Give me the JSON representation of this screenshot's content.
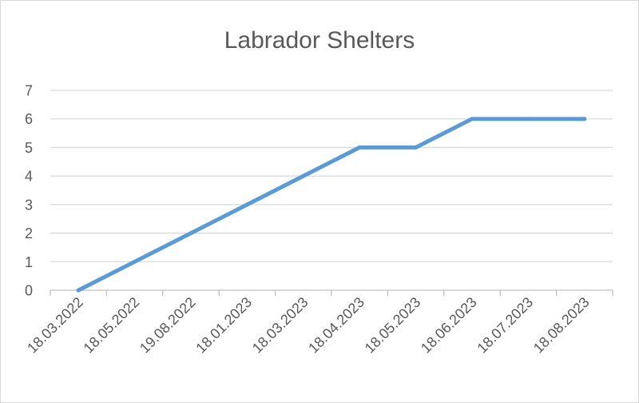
{
  "chart_data": {
    "type": "line",
    "title": "Labrador Shelters",
    "xlabel": "",
    "ylabel": "",
    "categories": [
      "18.03.2022",
      "18.05.2022",
      "19.08.2022",
      "18.01.2023",
      "18.03.2023",
      "18.04.2023",
      "18.05.2023",
      "18.06.2023",
      "18.07.2023",
      "18.08.2023"
    ],
    "series": [
      {
        "values": [
          0,
          1,
          2,
          3,
          4,
          5,
          5,
          6,
          6,
          6
        ]
      }
    ],
    "ylim": [
      0,
      7
    ],
    "yticks": [
      "0",
      "1",
      "2",
      "3",
      "4",
      "5",
      "6",
      "7"
    ],
    "grid": true,
    "legend": "none",
    "colors": {
      "line": "#5b9bd5",
      "grid": "#d9d9d9",
      "axis": "#bfbfbf",
      "text": "#595959"
    }
  }
}
